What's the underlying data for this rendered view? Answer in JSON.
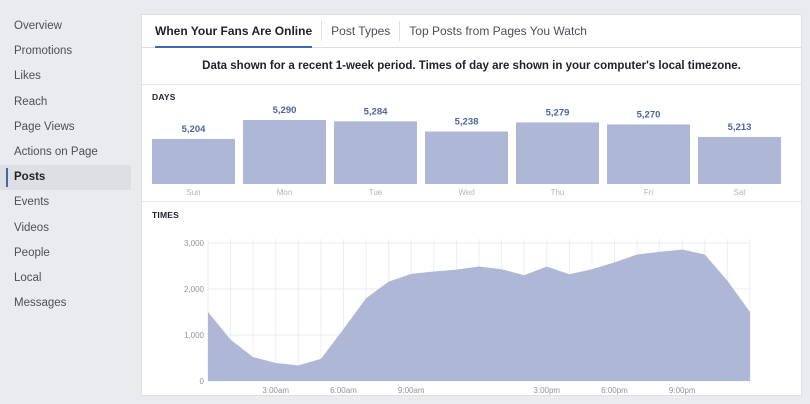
{
  "sidebar": {
    "items": [
      {
        "label": "Overview"
      },
      {
        "label": "Promotions"
      },
      {
        "label": "Likes"
      },
      {
        "label": "Reach"
      },
      {
        "label": "Page Views"
      },
      {
        "label": "Actions on Page"
      },
      {
        "label": "Posts",
        "active": true
      },
      {
        "label": "Events"
      },
      {
        "label": "Videos"
      },
      {
        "label": "People"
      },
      {
        "label": "Local"
      },
      {
        "label": "Messages"
      }
    ]
  },
  "tabs": [
    {
      "label": "When Your Fans Are Online",
      "active": true
    },
    {
      "label": "Post Types"
    },
    {
      "label": "Top Posts from Pages You Watch"
    }
  ],
  "notice": "Data shown for a recent 1-week period. Times of day are shown in your computer's local timezone.",
  "colors": {
    "accent": "#4267b2",
    "bar_fill": "#aeb8d6",
    "value_text": "#4a66a0"
  },
  "chart_data": [
    {
      "type": "bar",
      "title": "DAYS",
      "categories": [
        "Sun",
        "Mon",
        "Tue",
        "Wed",
        "Thu",
        "Fri",
        "Sat"
      ],
      "values": [
        5204,
        5290,
        5284,
        5238,
        5279,
        5270,
        5213
      ],
      "value_labels": [
        "5,204",
        "5,290",
        "5,284",
        "5,238",
        "5,279",
        "5,270",
        "5,213"
      ]
    },
    {
      "type": "area",
      "title": "TIMES",
      "x_hours": [
        0,
        1,
        2,
        3,
        4,
        5,
        6,
        7,
        8,
        9,
        10,
        11,
        12,
        13,
        14,
        15,
        16,
        17,
        18,
        19,
        20,
        21,
        22,
        23,
        24
      ],
      "values": [
        1500,
        900,
        520,
        390,
        340,
        480,
        1130,
        1800,
        2160,
        2330,
        2380,
        2420,
        2490,
        2430,
        2300,
        2490,
        2320,
        2430,
        2580,
        2750,
        2810,
        2860,
        2750,
        2180,
        1500
      ],
      "ylim": [
        0,
        3000
      ],
      "yticks": [
        "0",
        "1,000",
        "2,000",
        "3,000"
      ],
      "ytick_values": [
        0,
        1000,
        2000,
        3000
      ],
      "xticks": [
        "3:00am",
        "6:00am",
        "9:00am",
        "3:00pm",
        "6:00pm",
        "9:00pm"
      ],
      "xtick_hours": [
        3,
        6,
        9,
        15,
        18,
        21
      ],
      "grid": true
    }
  ]
}
